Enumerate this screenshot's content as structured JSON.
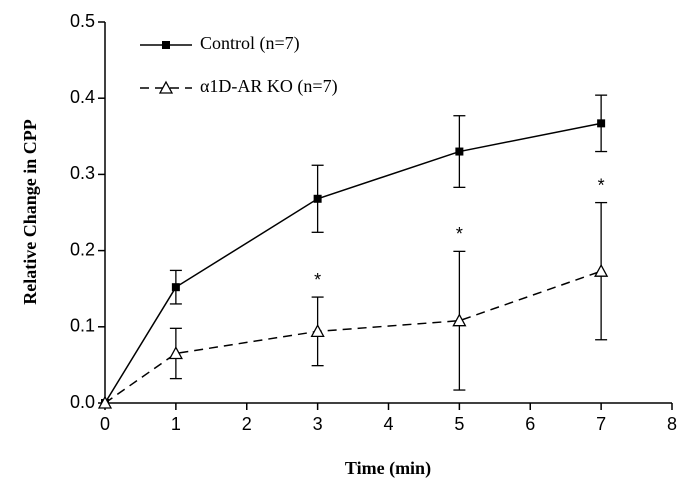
{
  "chart_data": {
    "type": "line",
    "x_label": "Time (min)",
    "y_label": "Relative Change in CPP",
    "x": [
      0,
      1,
      3,
      5,
      7
    ],
    "series": [
      {
        "name": "Control (n=7)",
        "color": "#000000",
        "line_style": "solid",
        "marker": "square",
        "values": [
          0,
          0.152,
          0.268,
          0.33,
          0.367
        ],
        "errors": [
          null,
          0.022,
          0.044,
          0.047,
          0.037
        ]
      },
      {
        "name": "α1D-AR KO (n=7)",
        "color": "#000000",
        "line_style": "dashed",
        "marker": "triangle-open",
        "values": [
          0,
          0.065,
          0.094,
          0.108,
          0.173
        ],
        "errors": [
          null,
          0.033,
          0.045,
          0.091,
          0.09
        ]
      }
    ],
    "annotations": [
      {
        "text": "*",
        "x": 3
      },
      {
        "text": "*",
        "x": 5
      },
      {
        "text": "*",
        "x": 7
      }
    ],
    "annotation_series": 1,
    "xlim": [
      0,
      8
    ],
    "xticks": [
      0,
      1,
      2,
      3,
      4,
      5,
      6,
      7,
      8
    ],
    "ylim": [
      0,
      0.5
    ],
    "yticks": [
      {
        "value": 0,
        "label": "0.0"
      },
      0.1,
      0.2,
      0.3,
      0.4,
      0.5
    ],
    "grid": false,
    "legend": "top-left"
  }
}
